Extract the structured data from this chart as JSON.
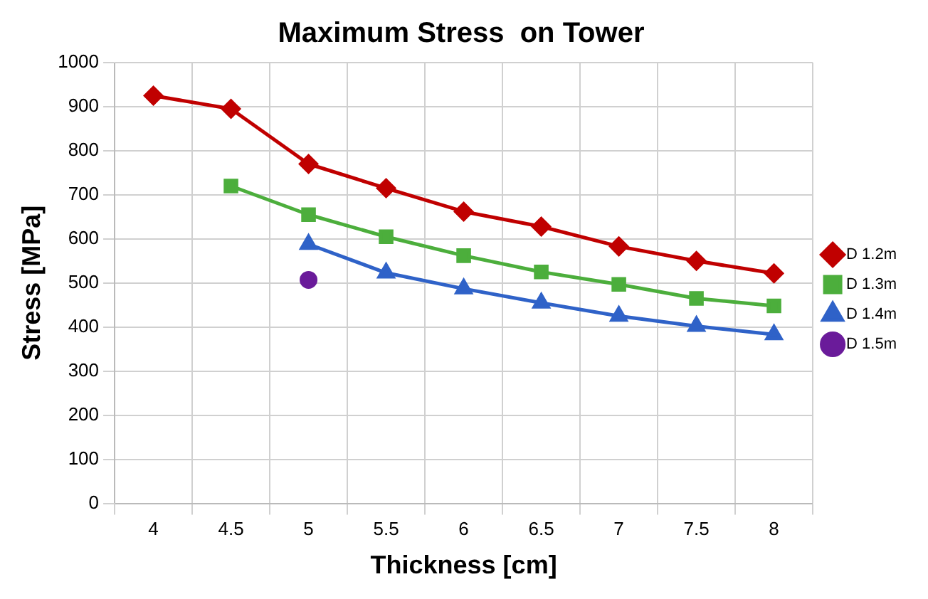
{
  "chart_data": {
    "type": "line",
    "title": "Maximum Stress  on Tower",
    "xlabel": "Thickness [cm]",
    "ylabel": "Stress [MPa]",
    "categories": [
      "4",
      "4.5",
      "5",
      "5.5",
      "6",
      "6.5",
      "7",
      "7.5",
      "8"
    ],
    "series": [
      {
        "name": "D 1.2m",
        "color": "#c00000",
        "marker": "diamond",
        "values": [
          925,
          895,
          770,
          715,
          662,
          628,
          583,
          550,
          522
        ]
      },
      {
        "name": "D 1.3m",
        "color": "#4cae3c",
        "marker": "square",
        "values": [
          null,
          720,
          655,
          605,
          562,
          525,
          497,
          465,
          448
        ]
      },
      {
        "name": "D 1.4m",
        "color": "#2f62c8",
        "marker": "triangle",
        "values": [
          null,
          null,
          588,
          523,
          487,
          455,
          425,
          402,
          383
        ]
      },
      {
        "name": "D 1.5m",
        "color": "#6a1b9a",
        "marker": "circle",
        "values": [
          null,
          null,
          507,
          null,
          null,
          null,
          null,
          null,
          null
        ]
      }
    ],
    "ylim": [
      0,
      1000
    ],
    "yticks": [
      0,
      100,
      200,
      300,
      400,
      500,
      600,
      700,
      800,
      900,
      1000
    ],
    "grid": true,
    "legend": "right",
    "line_style": "solid"
  }
}
